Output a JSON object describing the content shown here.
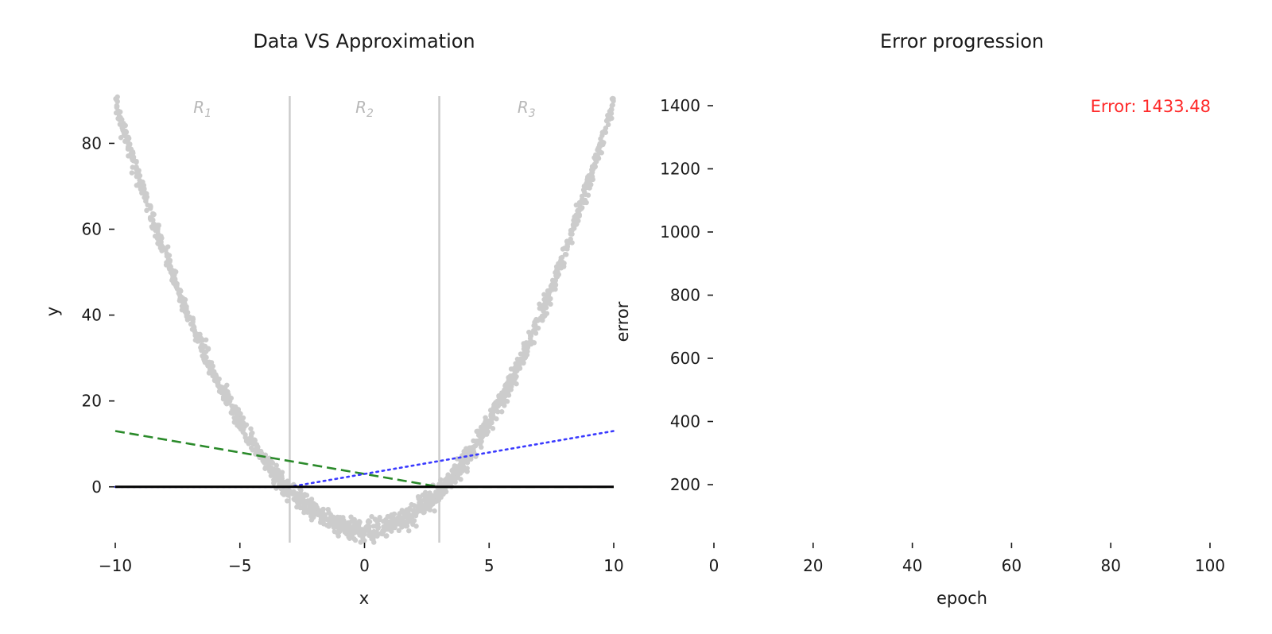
{
  "chart_data": [
    {
      "type": "scatter",
      "title": "Data VS Approximation",
      "xlabel": "x",
      "ylabel": "y",
      "xlim": [
        -10,
        10
      ],
      "ylim": [
        -13,
        91
      ],
      "xticks": [
        -10,
        -5,
        0,
        5,
        10
      ],
      "xtick_labels": [
        "−10",
        "−5",
        "0",
        "5",
        "10"
      ],
      "yticks": [
        0,
        20,
        40,
        60,
        80
      ],
      "ytick_labels": [
        "0",
        "20",
        "40",
        "60",
        "80"
      ],
      "grid": false,
      "legend": "none",
      "scatter_series": {
        "color": "#cccccc",
        "x_range": [
          -10,
          10
        ],
        "curve": "y = x^2 - 10",
        "noise": 1.2
      },
      "region_boundaries": [
        -3,
        3
      ],
      "regions": [
        {
          "base": "R",
          "sub": "1",
          "x": -6.5
        },
        {
          "base": "R",
          "sub": "2",
          "x": 0
        },
        {
          "base": "R",
          "sub": "3",
          "x": 6.5
        }
      ],
      "lines": [
        {
          "style": "dashed",
          "color": "#2a8a2a",
          "x": [
            -10,
            -3,
            3,
            10
          ],
          "y": [
            13,
            6,
            0,
            0
          ]
        },
        {
          "style": "dotted",
          "color": "#3a3aff",
          "x": [
            -10,
            -3,
            3,
            10
          ],
          "y": [
            0,
            0,
            6,
            13
          ]
        },
        {
          "style": "solid",
          "color": "#000000",
          "x": [
            -10,
            10
          ],
          "y": [
            0,
            0
          ]
        }
      ]
    },
    {
      "type": "line",
      "title": "Error progression",
      "xlabel": "epoch",
      "ylabel": "error",
      "xlim": [
        0,
        100
      ],
      "ylim": [
        50,
        1433.48
      ],
      "xticks": [
        0,
        20,
        40,
        60,
        80,
        100
      ],
      "xtick_labels": [
        "0",
        "20",
        "40",
        "60",
        "80",
        "100"
      ],
      "yticks": [
        200,
        400,
        600,
        800,
        1000,
        1200,
        1400
      ],
      "ytick_labels": [
        "200",
        "400",
        "600",
        "800",
        "1000",
        "1200",
        "1400"
      ],
      "grid": false,
      "series": [],
      "annotation": {
        "text": "Error: 1433.48",
        "color": "#ff2a2a"
      }
    }
  ]
}
